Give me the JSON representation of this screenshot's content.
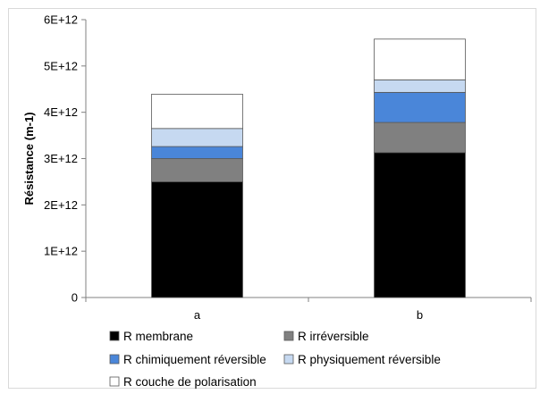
{
  "chart_data": {
    "type": "bar",
    "stacked": true,
    "title": "",
    "xlabel": "",
    "ylabel": "Résistance (m-1)",
    "categories": [
      "a",
      "b"
    ],
    "ylim": [
      0,
      6000000000000.0
    ],
    "ytick_values": [
      0,
      1000000000000.0,
      2000000000000.0,
      3000000000000.0,
      4000000000000.0,
      5000000000000.0,
      6000000000000.0
    ],
    "ytick_labels": [
      "0",
      "1E+12",
      "2E+12",
      "3E+12",
      "4E+12",
      "5E+12",
      "6E+12"
    ],
    "grid": false,
    "legend_position": "bottom",
    "series": [
      {
        "name": "R membrane",
        "color": "#000000",
        "values": [
          2500000000000.0,
          3130000000000.0
        ]
      },
      {
        "name": "R irréversible",
        "color": "#808080",
        "values": [
          500000000000.0,
          650000000000.0
        ]
      },
      {
        "name": "R chimiquement réversible",
        "color": "#4A86D9",
        "values": [
          260000000000.0,
          650000000000.0
        ]
      },
      {
        "name": "R physiquement réversible",
        "color": "#C6D9F1",
        "values": [
          390000000000.0,
          270000000000.0
        ]
      },
      {
        "name": "R couche de polarisation",
        "color": "#FFFFFF",
        "values": [
          740000000000.0,
          880000000000.0
        ]
      }
    ]
  }
}
